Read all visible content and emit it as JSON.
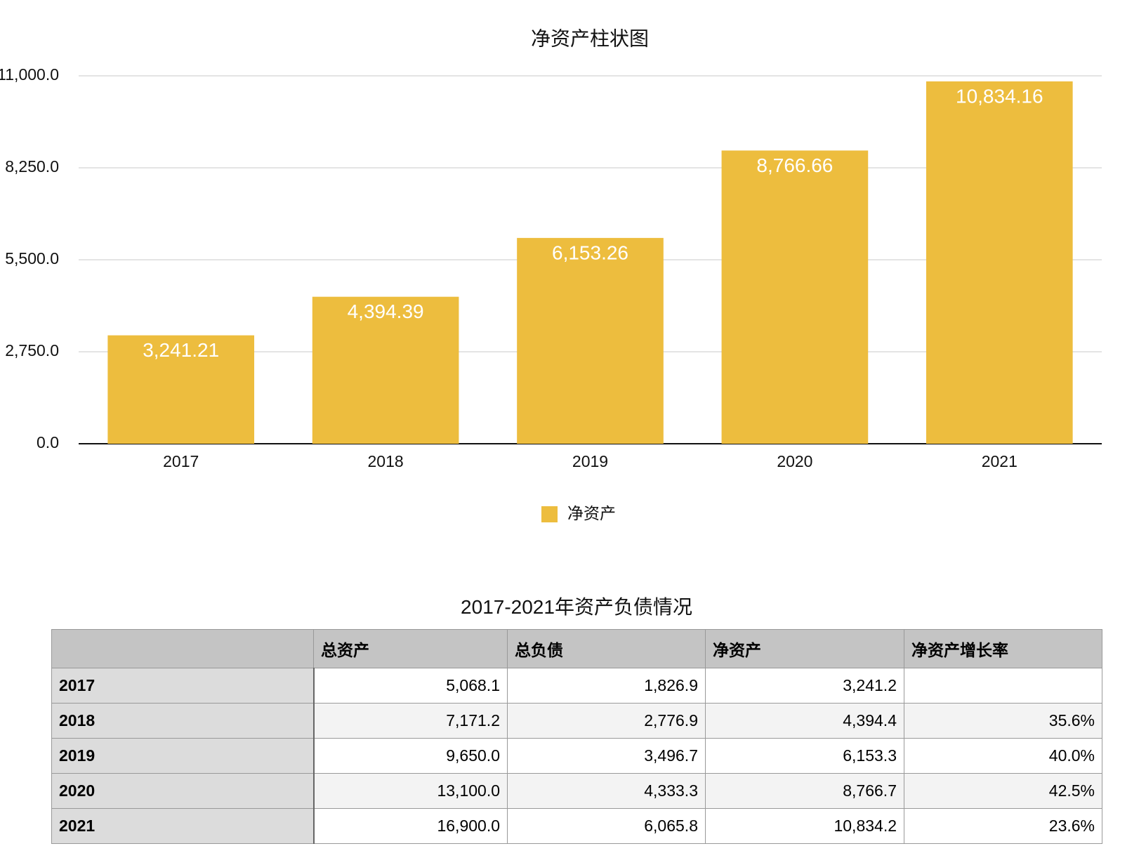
{
  "chart_data": {
    "type": "bar",
    "title": "净资产柱状图",
    "categories": [
      "2017",
      "2018",
      "2019",
      "2020",
      "2021"
    ],
    "series": [
      {
        "name": "净资产",
        "color": "#edbd3e",
        "values": [
          3241.21,
          4394.39,
          6153.26,
          8766.66,
          10834.16
        ],
        "value_labels": [
          "3,241.21",
          "4,394.39",
          "6,153.26",
          "8,766.66",
          "10,834.16"
        ]
      }
    ],
    "ylim": [
      0,
      11000
    ],
    "yticks": [
      {
        "value": 0,
        "label": "0.0"
      },
      {
        "value": 2750,
        "label": "2,750.0"
      },
      {
        "value": 5500,
        "label": "5,500.0"
      },
      {
        "value": 8250,
        "label": "8,250.0"
      },
      {
        "value": 11000,
        "label": "11,000.0"
      }
    ],
    "grid": true,
    "legend": "bottom"
  },
  "table": {
    "title": "2017-2021年资产负债情况",
    "header": [
      null,
      "总资产",
      "总负债",
      "净资产",
      "净资产增长率"
    ],
    "rows": [
      [
        "2017",
        "5,068.1",
        "1,826.9",
        "3,241.2",
        null
      ],
      [
        "2018",
        "7,171.2",
        "2,776.9",
        "4,394.4",
        "35.6%"
      ],
      [
        "2019",
        "9,650.0",
        "3,496.7",
        "6,153.3",
        "40.0%"
      ],
      [
        "2020",
        "13,100.0",
        "4,333.3",
        "8,766.7",
        "42.5%"
      ],
      [
        "2021",
        "16,900.0",
        "6,065.8",
        "10,834.2",
        "23.6%"
      ]
    ]
  }
}
